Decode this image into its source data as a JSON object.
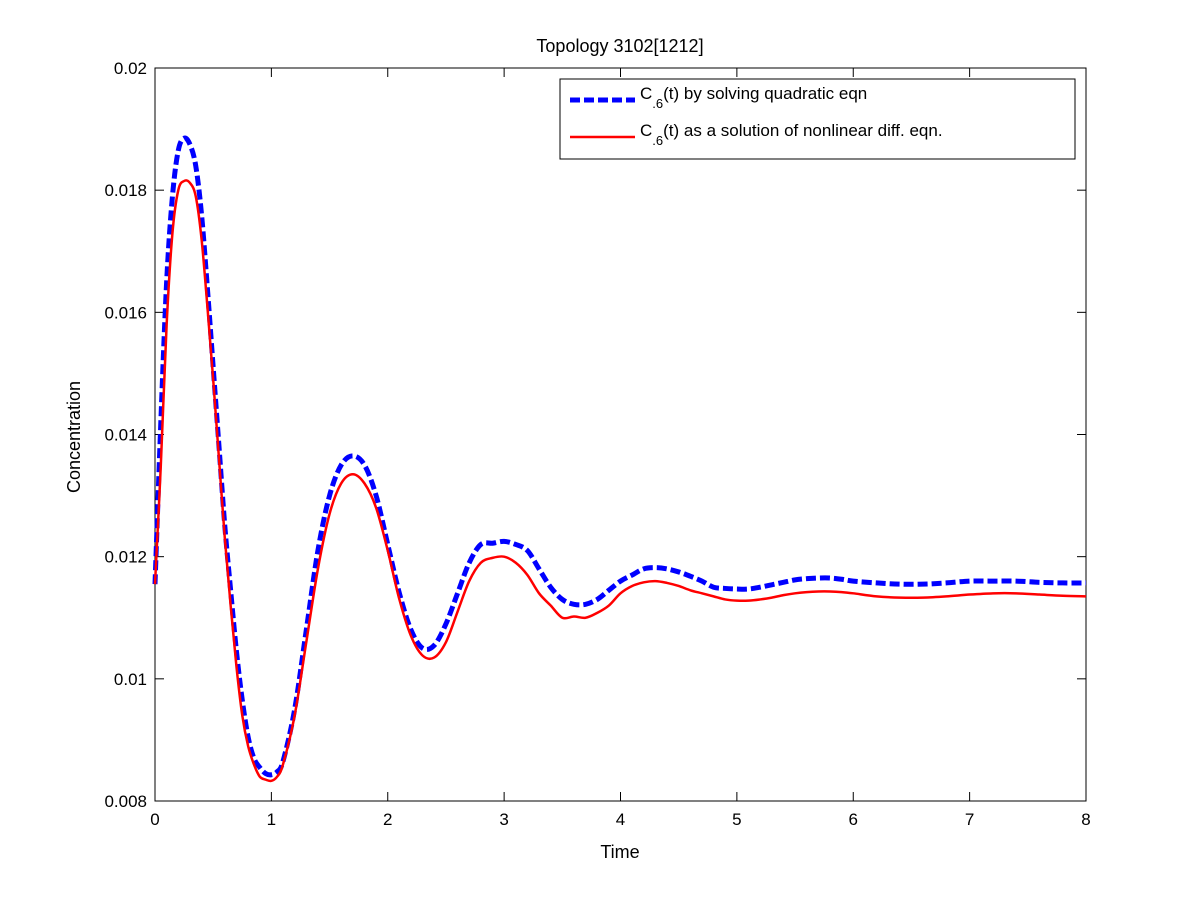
{
  "chart_data": {
    "type": "line",
    "title": "Topology 3102[1212]",
    "xlabel": "Time",
    "ylabel": "Concentration",
    "xlim": [
      0,
      8
    ],
    "ylim": [
      0.008,
      0.02
    ],
    "xticks": [
      0,
      1,
      2,
      3,
      4,
      5,
      6,
      7,
      8
    ],
    "xtick_labels": [
      "0",
      "1",
      "2",
      "3",
      "4",
      "5",
      "6",
      "7",
      "8"
    ],
    "yticks": [
      0.008,
      0.01,
      0.012,
      0.014,
      0.016,
      0.018,
      0.02
    ],
    "ytick_labels": [
      "0.008",
      "0.01",
      "0.012",
      "0.014",
      "0.016",
      "0.018",
      "0.02"
    ],
    "grid": false,
    "legend_position": "top-right",
    "series": [
      {
        "label_main": "C",
        "label_sub": ".6",
        "label_rest": "(t) by solving quadratic eqn",
        "color": "#0000ff",
        "style": "dashed",
        "x": [
          0,
          0.05,
          0.1,
          0.15,
          0.2,
          0.25,
          0.3,
          0.35,
          0.4,
          0.45,
          0.5,
          0.55,
          0.6,
          0.65,
          0.7,
          0.75,
          0.8,
          0.85,
          0.9,
          0.95,
          1.0,
          1.05,
          1.1,
          1.2,
          1.3,
          1.4,
          1.5,
          1.6,
          1.7,
          1.8,
          1.9,
          2.0,
          2.1,
          2.2,
          2.3,
          2.4,
          2.5,
          2.6,
          2.7,
          2.8,
          2.9,
          3.0,
          3.1,
          3.2,
          3.3,
          3.4,
          3.5,
          3.6,
          3.7,
          3.8,
          3.9,
          4.0,
          4.1,
          4.2,
          4.3,
          4.4,
          4.5,
          4.6,
          4.7,
          4.8,
          4.9,
          5.0,
          5.1,
          5.2,
          5.3,
          5.4,
          5.5,
          5.6,
          5.7,
          5.8,
          5.9,
          6.0,
          6.2,
          6.4,
          6.6,
          6.8,
          7.0,
          7.2,
          7.4,
          7.6,
          7.8,
          8.0
        ],
        "y": [
          0.01155,
          0.0142,
          0.0165,
          0.0179,
          0.01865,
          0.01885,
          0.01875,
          0.0184,
          0.0176,
          0.0164,
          0.0151,
          0.0138,
          0.0125,
          0.01145,
          0.01045,
          0.00965,
          0.00905,
          0.0087,
          0.00855,
          0.00845,
          0.00843,
          0.00848,
          0.00865,
          0.0095,
          0.0108,
          0.0121,
          0.013,
          0.0135,
          0.01365,
          0.0135,
          0.013,
          0.0122,
          0.0114,
          0.0108,
          0.0105,
          0.01055,
          0.0109,
          0.0114,
          0.0119,
          0.0122,
          0.01222,
          0.01225,
          0.0122,
          0.0121,
          0.0118,
          0.0115,
          0.0113,
          0.01122,
          0.01122,
          0.0113,
          0.01145,
          0.0116,
          0.0117,
          0.0118,
          0.01182,
          0.0118,
          0.01175,
          0.01168,
          0.0116,
          0.0115,
          0.01148,
          0.01147,
          0.01147,
          0.0115,
          0.01154,
          0.01158,
          0.01162,
          0.01164,
          0.01165,
          0.01165,
          0.01163,
          0.0116,
          0.01157,
          0.01155,
          0.01155,
          0.01157,
          0.0116,
          0.0116,
          0.0116,
          0.01158,
          0.01157,
          0.01157
        ]
      },
      {
        "label_main": "C",
        "label_sub": ".6",
        "label_rest": "(t) as a solution of nonlinear diff. eqn.",
        "color": "#ff0000",
        "style": "solid",
        "x": [
          0,
          0.05,
          0.1,
          0.15,
          0.2,
          0.25,
          0.3,
          0.35,
          0.4,
          0.45,
          0.5,
          0.55,
          0.6,
          0.65,
          0.7,
          0.75,
          0.8,
          0.85,
          0.9,
          0.95,
          1.0,
          1.05,
          1.1,
          1.2,
          1.3,
          1.4,
          1.5,
          1.6,
          1.7,
          1.8,
          1.9,
          2.0,
          2.1,
          2.2,
          2.3,
          2.4,
          2.5,
          2.6,
          2.7,
          2.8,
          2.9,
          3.0,
          3.1,
          3.2,
          3.3,
          3.4,
          3.5,
          3.6,
          3.7,
          3.8,
          3.9,
          4.0,
          4.1,
          4.2,
          4.3,
          4.4,
          4.5,
          4.6,
          4.7,
          4.8,
          4.9,
          5.0,
          5.1,
          5.2,
          5.3,
          5.4,
          5.5,
          5.6,
          5.7,
          5.8,
          5.9,
          6.0,
          6.2,
          6.4,
          6.6,
          6.8,
          7.0,
          7.2,
          7.4,
          7.6,
          7.8,
          8.0
        ],
        "y": [
          0.01155,
          0.0135,
          0.0158,
          0.0173,
          0.018,
          0.01815,
          0.01812,
          0.0179,
          0.0172,
          0.0161,
          0.0149,
          0.0136,
          0.0123,
          0.0112,
          0.0102,
          0.0094,
          0.0089,
          0.0086,
          0.0084,
          0.00835,
          0.00833,
          0.0084,
          0.0086,
          0.0094,
          0.0106,
          0.0118,
          0.0127,
          0.0132,
          0.01335,
          0.0132,
          0.0128,
          0.0121,
          0.0113,
          0.0107,
          0.01038,
          0.01035,
          0.0106,
          0.0111,
          0.0116,
          0.0119,
          0.01198,
          0.012,
          0.0119,
          0.0117,
          0.0114,
          0.0112,
          0.011,
          0.01102,
          0.011,
          0.01108,
          0.0112,
          0.0114,
          0.01152,
          0.01158,
          0.0116,
          0.01157,
          0.01152,
          0.01145,
          0.0114,
          0.01135,
          0.0113,
          0.01128,
          0.01128,
          0.0113,
          0.01133,
          0.01137,
          0.0114,
          0.01142,
          0.01143,
          0.01143,
          0.01142,
          0.0114,
          0.01135,
          0.01133,
          0.01133,
          0.01135,
          0.01138,
          0.0114,
          0.0114,
          0.01138,
          0.01136,
          0.01135
        ]
      }
    ]
  }
}
